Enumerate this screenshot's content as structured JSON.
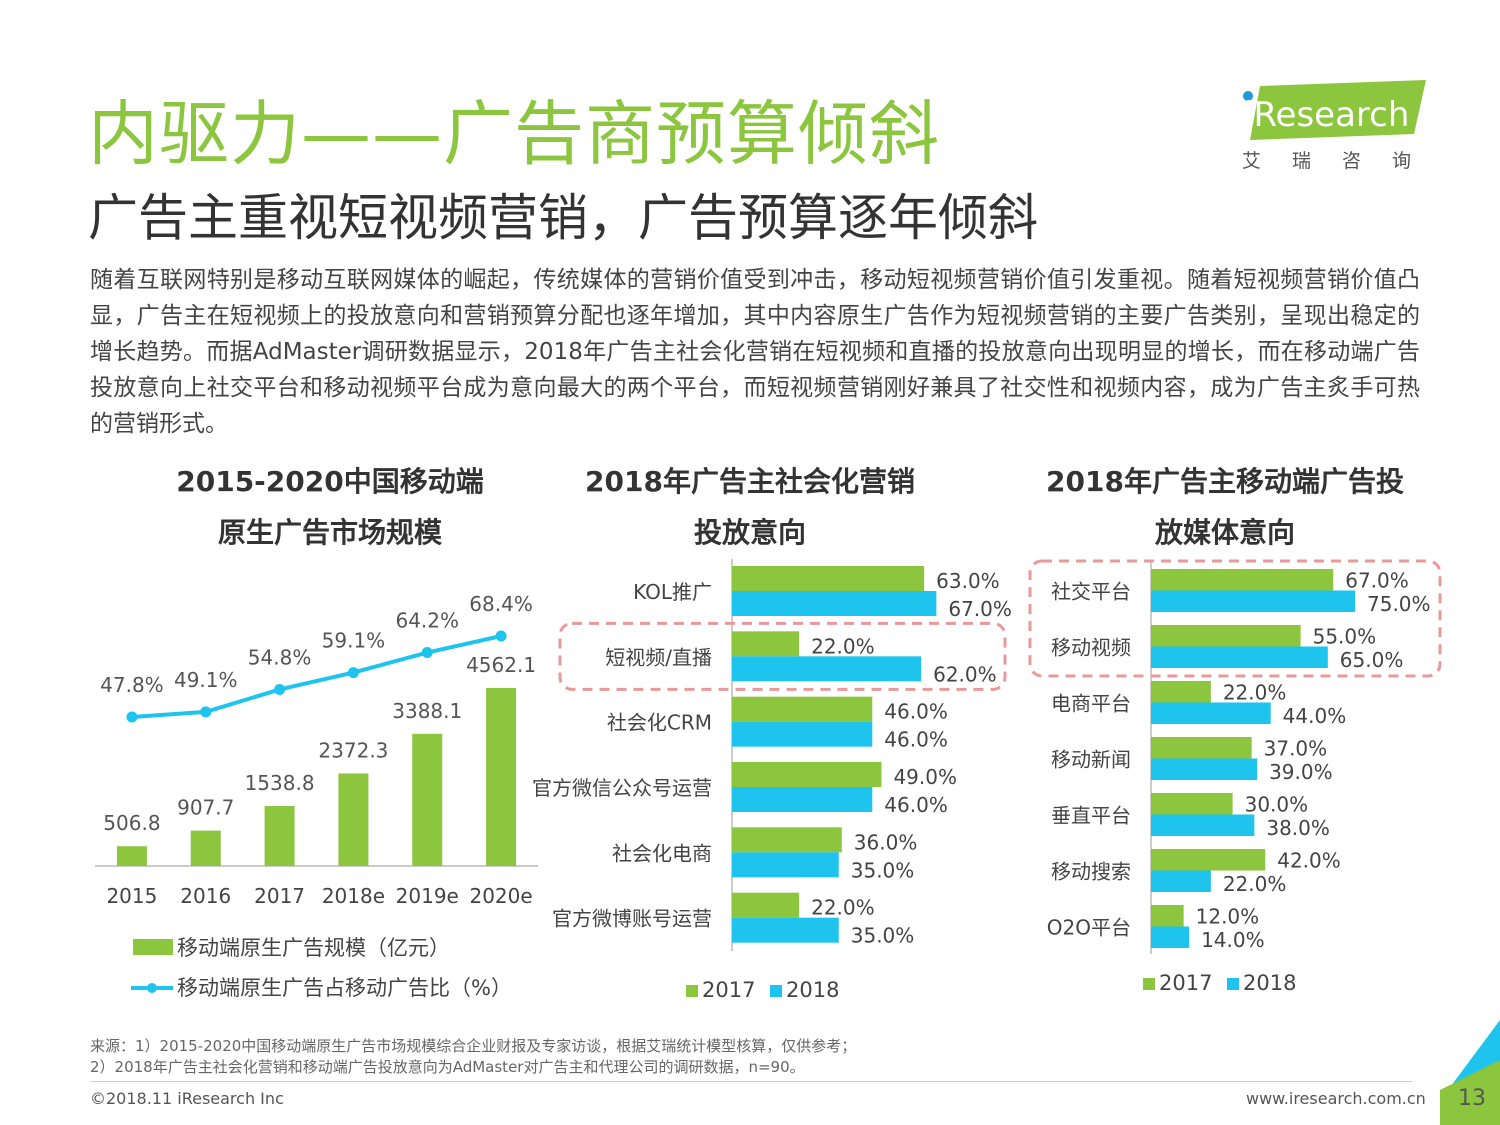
{
  "header": {
    "title": "内驱力——广告商预算倾斜",
    "subtitle": "广告主重视短视频营销，广告预算逐年倾斜",
    "paragraph": "随着互联网特别是移动互联网媒体的崛起，传统媒体的营销价值受到冲击，移动短视频营销价值引发重视。随着短视频营销价值凸显，广告主在短视频上的投放意向和营销预算分配也逐年增加，其中内容原生广告作为短视频营销的主要广告类别，呈现出稳定的增长趋势。而据AdMaster调研数据显示，2018年广告主社会化营销在短视频和直播的投放意向出现明显的增长，而在移动端广告投放意向上社交平台和移动视频平台成为意向最大的两个平台，而短视频营销刚好兼具了社交性和视频内容，成为广告主炙手可热的营销形式。"
  },
  "logo": {
    "text": "iResearch",
    "cn": "艾瑞咨询"
  },
  "colors": {
    "green": "#8cc63f",
    "blue": "#1ec4ee",
    "highlight": "#e89a9a"
  },
  "chart_data": [
    {
      "type": "bar",
      "title_line1": "2015-2020中国移动端",
      "title_line2": "原生广告市场规模",
      "categories": [
        "2015",
        "2016",
        "2017",
        "2018e",
        "2019e",
        "2020e"
      ],
      "series": [
        {
          "name": "移动端原生广告规模（亿元）",
          "type": "bar",
          "values": [
            506.8,
            907.7,
            1538.8,
            2372.3,
            3388.1,
            4562.1
          ],
          "labels": [
            "506.8",
            "907.7",
            "1538.8",
            "2372.3",
            "3388.1",
            "4562.1"
          ]
        },
        {
          "name": "移动端原生广告占移动广告比（%）",
          "type": "line",
          "values": [
            47.8,
            49.1,
            54.8,
            59.1,
            64.2,
            68.4
          ],
          "labels": [
            "47.8%",
            "49.1%",
            "54.8%",
            "59.1%",
            "64.2%",
            "68.4%"
          ]
        }
      ]
    },
    {
      "type": "bar",
      "orientation": "horizontal",
      "title_line1": "2018年广告主社会化营销",
      "title_line2": "投放意向",
      "categories": [
        "KOL推广",
        "短视频/直播",
        "社会化CRM",
        "官方微信公众号运营",
        "社会化电商",
        "官方微博账号运营"
      ],
      "highlight": [
        "短视频/直播"
      ],
      "series": [
        {
          "name": "2017",
          "values": [
            63.0,
            22.0,
            46.0,
            49.0,
            36.0,
            22.0
          ],
          "labels": [
            "63.0%",
            "22.0%",
            "46.0%",
            "49.0%",
            "36.0%",
            "22.0%"
          ]
        },
        {
          "name": "2018",
          "values": [
            67.0,
            62.0,
            46.0,
            46.0,
            35.0,
            35.0
          ],
          "labels": [
            "67.0%",
            "62.0%",
            "46.0%",
            "46.0%",
            "35.0%",
            "35.0%"
          ]
        }
      ]
    },
    {
      "type": "bar",
      "orientation": "horizontal",
      "title_line1": "2018年广告主移动端广告投",
      "title_line2": "放媒体意向",
      "categories": [
        "社交平台",
        "移动视频",
        "电商平台",
        "移动新闻",
        "垂直平台",
        "移动搜索",
        "O2O平台"
      ],
      "highlight": [
        "社交平台",
        "移动视频"
      ],
      "series": [
        {
          "name": "2017",
          "values": [
            67.0,
            55.0,
            22.0,
            37.0,
            30.0,
            42.0,
            12.0
          ],
          "labels": [
            "67.0%",
            "55.0%",
            "22.0%",
            "37.0%",
            "30.0%",
            "42.0%",
            "12.0%"
          ]
        },
        {
          "name": "2018",
          "values": [
            75.0,
            65.0,
            44.0,
            39.0,
            38.0,
            22.0,
            14.0
          ],
          "labels": [
            "75.0%",
            "65.0%",
            "44.0%",
            "39.0%",
            "38.0%",
            "22.0%",
            "14.0%"
          ]
        }
      ]
    }
  ],
  "footer": {
    "source_line1": "来源：1）2015-2020中国移动端原生广告市场规模综合企业财报及专家访谈，根据艾瑞统计模型核算，仅供参考；",
    "source_line2": "2）2018年广告主社会化营销和移动端广告投放意向为AdMaster对广告主和代理公司的调研数据，n=90。",
    "copyright": "©2018.11 iResearch Inc",
    "website": "www.iresearch.com.cn",
    "page": "13"
  }
}
